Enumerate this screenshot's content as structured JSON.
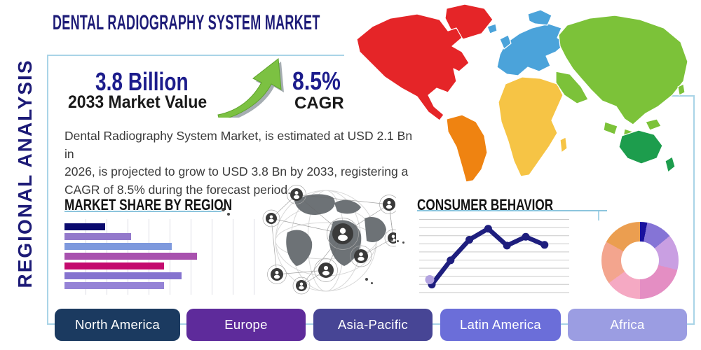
{
  "title": "DENTAL RADIOGRAPHY SYSTEM MARKET",
  "sidebar": {
    "label": "REGIONAL ANALYSIS"
  },
  "stats": {
    "market_value": "3.8 Billion",
    "market_value_caption": "2033 Market Value",
    "cagr_value": "8.5%",
    "cagr_caption": "CAGR"
  },
  "description": {
    "lines": [
      "Dental Radiography System Market, is estimated at USD 2.1 Bn in",
      "2026, is projected to grow to USD 3.8 Bn by 2033, registering a",
      "CAGR of 8.5% during the forecast period."
    ]
  },
  "chart_data": [
    {
      "type": "bar",
      "title": "MARKET SHARE BY REGION",
      "orientation": "horizontal",
      "categories": [
        "",
        "",
        "",
        "",
        "",
        "",
        ""
      ],
      "values": [
        21,
        34,
        55,
        68,
        51,
        60,
        51
      ],
      "xlim": [
        0,
        100
      ],
      "unit": "relative share (unlabeled axis)",
      "grid": true,
      "colors": [
        "#0a0a6e",
        "#9379cb",
        "#7e99dd",
        "#a851ae",
        "#c40b6e",
        "#8573cf",
        "#9583d6"
      ]
    },
    {
      "type": "line",
      "title": "CONSUMER BEHAVIOR",
      "x": [
        1,
        2,
        3,
        4,
        5,
        6,
        7
      ],
      "values": [
        10,
        43,
        71,
        86,
        63,
        75,
        64
      ],
      "ylim": [
        0,
        100
      ],
      "grid": true,
      "line_color": "#1e1e7e",
      "start_dot_color": "#b3a3e0"
    },
    {
      "type": "pie",
      "title": "",
      "donut": true,
      "values": [
        3,
        11,
        15,
        21,
        15,
        18,
        17
      ],
      "colors": [
        "#19119e",
        "#8574d6",
        "#c99fe2",
        "#e48ec3",
        "#f5a9c3",
        "#f3a58e",
        "#eb9e50"
      ]
    }
  ],
  "map": {
    "regions": {
      "north_america": {
        "name": "North America",
        "color": "#e52528"
      },
      "greenland": {
        "name": "Greenland",
        "color": "#e52528"
      },
      "south_america": {
        "name": "South America",
        "color": "#ef8311"
      },
      "europe": {
        "name": "Europe",
        "color": "#4ba3da"
      },
      "africa": {
        "name": "Africa",
        "color": "#f6c445"
      },
      "asia": {
        "name": "Asia",
        "color": "#7cc239"
      },
      "australia": {
        "name": "Australia",
        "color": "#1d9d4d"
      }
    }
  },
  "buttons": [
    {
      "label": "North America",
      "color": "#1b3a60"
    },
    {
      "label": "Europe",
      "color": "#5e2b9b"
    },
    {
      "label": "Asia-Pacific",
      "color": "#474595"
    },
    {
      "label": "Latin America",
      "color": "#6b6ed9"
    },
    {
      "label": "Africa",
      "color": "#9b9de2"
    }
  ],
  "palette": {
    "title_color": "#1d1b77",
    "stat_color": "#1c1c8c",
    "frame_color": "#a9d4e7",
    "underline_color": "#8cc5dd",
    "arrow_color": "#7cc142",
    "line_grid_color": "#c9c9c9"
  }
}
